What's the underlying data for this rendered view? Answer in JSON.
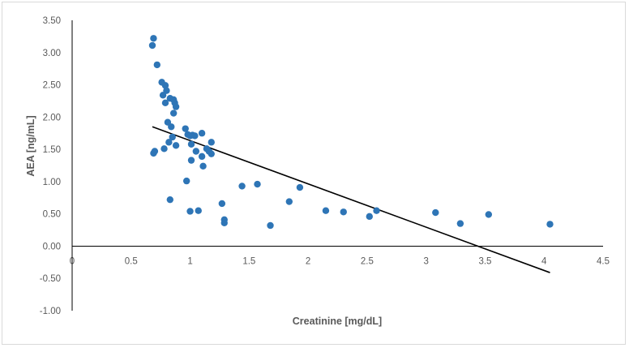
{
  "chart_data": {
    "type": "scatter",
    "xlabel": "Creatinine [mg/dL]",
    "ylabel": "AEA [ng/mL]",
    "xlim": [
      0,
      4.5
    ],
    "ylim": [
      -1.0,
      3.5
    ],
    "x_ticks": [
      0,
      0.5,
      1,
      1.5,
      2,
      2.5,
      3,
      3.5,
      4,
      4.5
    ],
    "x_tick_labels": [
      "0",
      "0.5",
      "1",
      "1.5",
      "2",
      "2.5",
      "3",
      "3.5",
      "4",
      "4.5"
    ],
    "y_ticks": [
      3.5,
      3.0,
      2.5,
      2.0,
      1.5,
      1.0,
      0.5,
      0.0,
      -0.5,
      -1.0
    ],
    "y_tick_labels": [
      "3.50",
      "3.00",
      "2.50",
      "2.00",
      "1.50",
      "1.00",
      "0.50",
      "0.00",
      "-0.50",
      "-1.00"
    ],
    "grid": false,
    "legend": "none",
    "colors": {
      "points": "#2e75b6",
      "trendline": "#000000",
      "axes": "#000000",
      "text": "#595959"
    },
    "series": [
      {
        "points": [
          [
            0.68,
            3.11
          ],
          [
            0.69,
            3.22
          ],
          [
            0.72,
            2.81
          ],
          [
            0.76,
            2.54
          ],
          [
            0.79,
            2.49
          ],
          [
            0.77,
            2.34
          ],
          [
            0.8,
            2.41
          ],
          [
            0.83,
            2.29
          ],
          [
            0.79,
            2.22
          ],
          [
            0.86,
            2.27
          ],
          [
            0.87,
            2.22
          ],
          [
            0.88,
            2.16
          ],
          [
            0.86,
            2.06
          ],
          [
            0.81,
            1.92
          ],
          [
            0.84,
            1.85
          ],
          [
            0.85,
            1.69
          ],
          [
            0.82,
            1.61
          ],
          [
            0.88,
            1.56
          ],
          [
            0.78,
            1.51
          ],
          [
            0.7,
            1.47
          ],
          [
            0.69,
            1.44
          ],
          [
            0.96,
            1.82
          ],
          [
            0.98,
            1.73
          ],
          [
            1.0,
            1.71
          ],
          [
            1.02,
            1.72
          ],
          [
            1.04,
            1.71
          ],
          [
            1.1,
            1.75
          ],
          [
            1.01,
            1.58
          ],
          [
            1.05,
            1.47
          ],
          [
            1.14,
            1.51
          ],
          [
            1.16,
            1.47
          ],
          [
            1.18,
            1.61
          ],
          [
            1.18,
            1.43
          ],
          [
            1.1,
            1.39
          ],
          [
            1.01,
            1.33
          ],
          [
            1.11,
            1.24
          ],
          [
            0.97,
            1.01
          ],
          [
            0.83,
            0.72
          ],
          [
            1.0,
            0.54
          ],
          [
            1.07,
            0.55
          ],
          [
            1.27,
            0.66
          ],
          [
            1.29,
            0.41
          ],
          [
            1.29,
            0.36
          ],
          [
            1.44,
            0.93
          ],
          [
            1.57,
            0.96
          ],
          [
            1.68,
            0.32
          ],
          [
            1.84,
            0.69
          ],
          [
            1.93,
            0.91
          ],
          [
            2.15,
            0.55
          ],
          [
            2.3,
            0.53
          ],
          [
            2.52,
            0.46
          ],
          [
            2.58,
            0.55
          ],
          [
            3.08,
            0.52
          ],
          [
            3.29,
            0.35
          ],
          [
            3.53,
            0.49
          ],
          [
            4.05,
            0.34
          ]
        ]
      }
    ],
    "trendline": {
      "x": [
        0.68,
        4.05
      ],
      "y": [
        1.85,
        -0.41
      ]
    }
  }
}
